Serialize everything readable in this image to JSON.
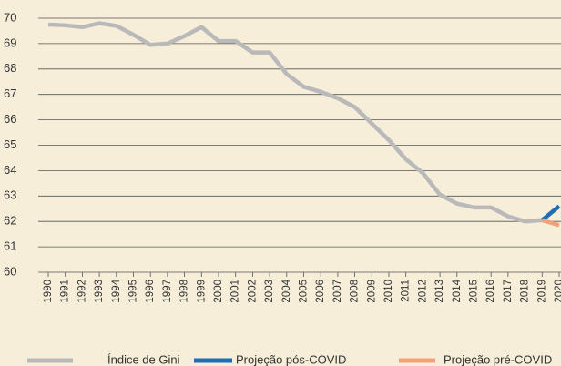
{
  "chart_data": {
    "type": "line",
    "categories": [
      "1990",
      "1991",
      "1992",
      "1993",
      "1994",
      "1995",
      "1996",
      "1997",
      "1998",
      "1999",
      "2000",
      "2001",
      "2002",
      "2003",
      "2004",
      "2005",
      "2006",
      "2007",
      "2008",
      "2009",
      "2010",
      "2011",
      "2012",
      "2013",
      "2014",
      "2015",
      "2016",
      "2017",
      "2018",
      "2019",
      "2020"
    ],
    "series": [
      {
        "name": "Índice de Gini",
        "color": "#b9b9b9",
        "values": [
          69.75,
          69.72,
          69.65,
          69.8,
          69.7,
          69.35,
          68.95,
          69.0,
          69.3,
          69.65,
          69.1,
          69.1,
          68.65,
          68.65,
          67.8,
          67.3,
          67.1,
          66.85,
          66.5,
          65.85,
          65.2,
          64.45,
          63.9,
          63.05,
          62.7,
          62.55,
          62.55,
          62.2,
          62.0,
          62.05,
          null
        ]
      },
      {
        "name": "Projeção pós-COVID",
        "color": "#1f6db3",
        "values": [
          null,
          null,
          null,
          null,
          null,
          null,
          null,
          null,
          null,
          null,
          null,
          null,
          null,
          null,
          null,
          null,
          null,
          null,
          null,
          null,
          null,
          null,
          null,
          null,
          null,
          null,
          null,
          null,
          null,
          62.05,
          62.6
        ]
      },
      {
        "name": "Projeção pré-COVID",
        "color": "#f3a178",
        "values": [
          null,
          null,
          null,
          null,
          null,
          null,
          null,
          null,
          null,
          null,
          null,
          null,
          null,
          null,
          null,
          null,
          null,
          null,
          null,
          null,
          null,
          null,
          null,
          null,
          null,
          null,
          null,
          null,
          null,
          62.05,
          61.85
        ]
      }
    ],
    "ylim": [
      60,
      70
    ],
    "yticks": [
      60,
      61,
      62,
      63,
      64,
      65,
      66,
      67,
      68,
      69,
      70
    ],
    "grid": true
  }
}
